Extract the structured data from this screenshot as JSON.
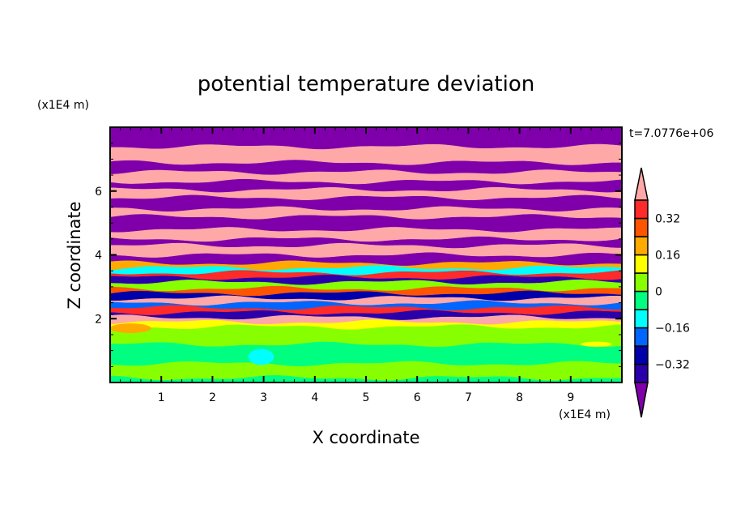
{
  "chart_data": {
    "type": "heatmap",
    "title": "potential temperature deviation",
    "xlabel": "X coordinate",
    "ylabel": "Z coordinate",
    "x_unit": "(x1E4 m)",
    "y_unit": "(x1E4 m)",
    "annotation": "t=7.0776e+06",
    "xlim": [
      0,
      10
    ],
    "ylim": [
      0,
      8
    ],
    "x_ticks": [
      "1",
      "2",
      "3",
      "4",
      "5",
      "6",
      "7",
      "8",
      "9"
    ],
    "y_ticks": [
      "2",
      "4",
      "6"
    ],
    "colorbar": {
      "levels": [
        -0.4,
        -0.32,
        -0.24,
        -0.16,
        -0.08,
        0,
        0.08,
        0.16,
        0.24,
        0.32,
        0.4
      ],
      "tick_labels": [
        "0.32",
        "0.16",
        "0",
        "−0.16",
        "−0.32"
      ],
      "tick_values": [
        0.32,
        0.16,
        0,
        -0.16,
        -0.32
      ],
      "colors": [
        "#7f00aa",
        "#2a00aa",
        "#0000aa",
        "#0066ff",
        "#00ffff",
        "#00ff80",
        "#88ff00",
        "#ffff00",
        "#ffaa00",
        "#ff5500",
        "#ff2a2a",
        "#ffa8a8"
      ],
      "extend": "both"
    },
    "bands": [
      {
        "z": [
          0.0,
          0.15
        ],
        "value": -0.04
      },
      {
        "z": [
          0.15,
          0.6
        ],
        "value": 0.04
      },
      {
        "z": [
          0.6,
          1.2
        ],
        "value": -0.04
      },
      {
        "z": [
          1.2,
          1.75
        ],
        "value": 0.04
      },
      {
        "z": [
          1.75,
          1.9
        ],
        "value": 0.12
      },
      {
        "z": [
          1.9,
          2.05
        ],
        "value": 0.5
      },
      {
        "z": [
          2.05,
          2.2
        ],
        "value": -0.36
      },
      {
        "z": [
          2.2,
          2.35
        ],
        "value": 0.36
      },
      {
        "z": [
          2.35,
          2.5
        ],
        "value": -0.2
      },
      {
        "z": [
          2.5,
          2.65
        ],
        "value": 0.5
      },
      {
        "z": [
          2.65,
          2.8
        ],
        "value": -0.28
      },
      {
        "z": [
          2.8,
          2.95
        ],
        "value": 0.28
      },
      {
        "z": [
          2.95,
          3.15
        ],
        "value": 0.04
      },
      {
        "z": [
          3.15,
          3.3
        ],
        "value": -0.36
      },
      {
        "z": [
          3.3,
          3.45
        ],
        "value": 0.36
      },
      {
        "z": [
          3.45,
          3.6
        ],
        "value": -0.1
      },
      {
        "z": [
          3.6,
          3.75
        ],
        "value": 0.2
      },
      {
        "z": [
          3.75,
          4.0
        ],
        "value": -0.5
      },
      {
        "z": [
          4.0,
          4.3
        ],
        "value": 0.5
      },
      {
        "z": [
          4.3,
          4.5
        ],
        "value": -0.5
      },
      {
        "z": [
          4.5,
          4.8
        ],
        "value": 0.5
      },
      {
        "z": [
          4.8,
          5.2
        ],
        "value": -0.5
      },
      {
        "z": [
          5.2,
          5.45
        ],
        "value": 0.5
      },
      {
        "z": [
          5.45,
          5.8
        ],
        "value": -0.5
      },
      {
        "z": [
          5.8,
          6.05
        ],
        "value": 0.5
      },
      {
        "z": [
          6.05,
          6.3
        ],
        "value": -0.5
      },
      {
        "z": [
          6.3,
          6.6
        ],
        "value": 0.5
      },
      {
        "z": [
          6.6,
          6.9
        ],
        "value": -0.5
      },
      {
        "z": [
          6.9,
          7.4
        ],
        "value": 0.5
      },
      {
        "z": [
          7.4,
          8.0
        ],
        "value": -0.5
      }
    ],
    "patches": [
      {
        "x": 2.95,
        "z": 0.8,
        "rx": 0.25,
        "rz": 0.25,
        "value": -0.12
      },
      {
        "x": 9.5,
        "z": 1.2,
        "rx": 0.3,
        "rz": 0.08,
        "value": 0.12
      },
      {
        "x": 0.4,
        "z": 1.7,
        "rx": 0.4,
        "rz": 0.15,
        "value": 0.2
      }
    ]
  }
}
